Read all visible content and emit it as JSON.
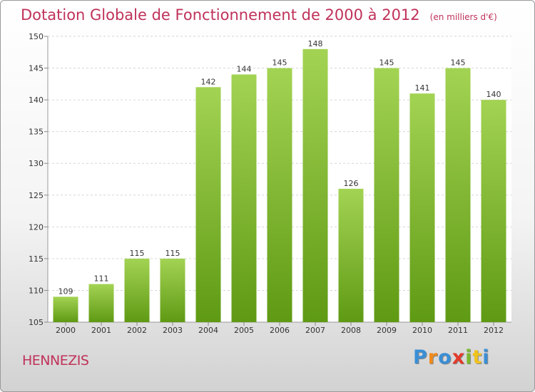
{
  "chart_data": {
    "type": "bar",
    "title": "Dotation Globale de Fonctionnement de 2000 à 2012",
    "subtitle": "(en milliers d'€)",
    "categories": [
      "2000",
      "2001",
      "2002",
      "2003",
      "2004",
      "2005",
      "2006",
      "2007",
      "2008",
      "2009",
      "2010",
      "2011",
      "2012"
    ],
    "values": [
      109,
      111,
      115,
      115,
      142,
      144,
      145,
      148,
      126,
      145,
      141,
      145,
      140
    ],
    "ylim": [
      105,
      150
    ],
    "yticks": [
      105,
      110,
      115,
      120,
      125,
      130,
      135,
      140,
      145,
      150
    ],
    "grid": true,
    "bar_color": "#7dbb2e",
    "title_color": "#c0325a"
  },
  "location": "HENNEZIS",
  "logo": {
    "letters": [
      "P",
      "r",
      "o",
      "x",
      "i",
      "t",
      "i"
    ],
    "colors": [
      "#3a8fd6",
      "#f08a1c",
      "#3a8fd6",
      "#e23a2a",
      "#7ab82e",
      "#f0c21c",
      "#3a8fd6"
    ]
  }
}
